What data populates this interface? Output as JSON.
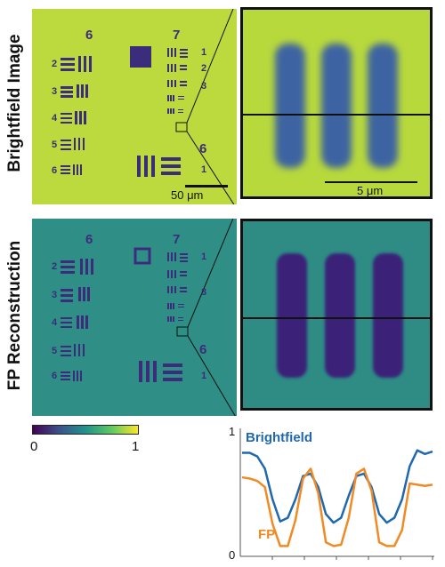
{
  "labels": {
    "brightfield_row": "Brightfield Image",
    "fp_row": "FP Reconstruction"
  },
  "target": {
    "group6": "6",
    "group7": "7",
    "group6_br": "6",
    "elements_left": [
      "2",
      "3",
      "4",
      "5",
      "6"
    ],
    "elements_right_g7": [
      "1",
      "2",
      "3"
    ],
    "element_br": "1"
  },
  "scalebars": {
    "main": "50 μm",
    "zoom": "5 μm"
  },
  "colorbar": {
    "min": "0",
    "max": "1",
    "stops": [
      "#440154",
      "#3b528b",
      "#21918c",
      "#5ec962",
      "#fde725"
    ]
  },
  "colors": {
    "bf_bg": "#bcd93e",
    "fp_bg": "#2f8f86",
    "bar_dark": "#3b2d7a",
    "bf_line": "#1f68b0",
    "fp_line": "#f28a24"
  },
  "chart_data": {
    "type": "line",
    "title": "",
    "xlabel": "",
    "ylabel": "",
    "ylim": [
      0,
      1
    ],
    "yticks": [
      "1",
      "0"
    ],
    "x": [
      0,
      0.04,
      0.08,
      0.12,
      0.16,
      0.2,
      0.24,
      0.28,
      0.32,
      0.36,
      0.4,
      0.44,
      0.48,
      0.52,
      0.56,
      0.6,
      0.64,
      0.68,
      0.72,
      0.76,
      0.8,
      0.84,
      0.88,
      0.92,
      0.96,
      1.0
    ],
    "series": [
      {
        "name": "Brightfield",
        "color": "#1f68b0",
        "values": [
          0.83,
          0.83,
          0.8,
          0.7,
          0.45,
          0.27,
          0.3,
          0.45,
          0.64,
          0.66,
          0.55,
          0.33,
          0.26,
          0.3,
          0.48,
          0.64,
          0.66,
          0.55,
          0.33,
          0.26,
          0.3,
          0.45,
          0.72,
          0.85,
          0.82,
          0.84
        ]
      },
      {
        "name": "FP",
        "color": "#f28a24",
        "values": [
          0.63,
          0.62,
          0.6,
          0.55,
          0.25,
          0.07,
          0.07,
          0.28,
          0.62,
          0.7,
          0.5,
          0.1,
          0.07,
          0.08,
          0.3,
          0.66,
          0.7,
          0.52,
          0.1,
          0.07,
          0.07,
          0.2,
          0.58,
          0.57,
          0.56,
          0.57
        ]
      }
    ]
  }
}
